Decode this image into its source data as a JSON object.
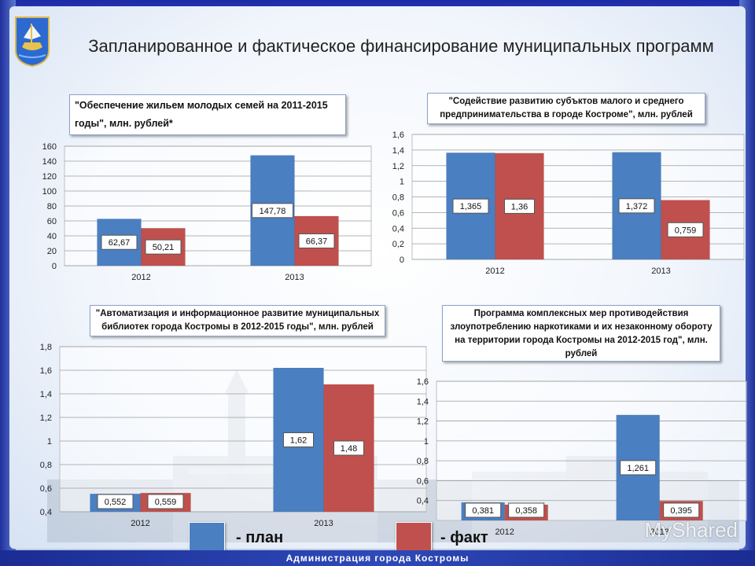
{
  "page": {
    "title": "Запланированное и фактическое финансирование муниципальных программ",
    "footer": "Администрация города Костромы",
    "watermark": "MyShared"
  },
  "legend": {
    "plan_label": "- план",
    "fact_label": "- факт",
    "plan_color": "#4a7fc1",
    "fact_color": "#c0504d"
  },
  "chart_data": [
    {
      "type": "bar",
      "title": "\"Обеспечение жильем молодых семей на 2011-2015 годы\", млн. рублей*",
      "categories": [
        "2012",
        "2013"
      ],
      "series": [
        {
          "name": "план",
          "values": [
            62.67,
            147.78
          ],
          "labels": [
            "62,67",
            "147,78"
          ]
        },
        {
          "name": "факт",
          "values": [
            50.21,
            66.37
          ],
          "labels": [
            "50,21",
            "66,37"
          ]
        }
      ],
      "ylim": [
        0,
        160
      ],
      "yticks": [
        "0",
        "20",
        "40",
        "60",
        "80",
        "100",
        "120",
        "140",
        "160"
      ],
      "ytick_values": [
        0,
        20,
        40,
        60,
        80,
        100,
        120,
        140,
        160
      ]
    },
    {
      "type": "bar",
      "title": "\"Содействие развитию субъктов малого и среднего предпринимательства в городе Костроме\", млн. рублей",
      "categories": [
        "2012",
        "2013"
      ],
      "series": [
        {
          "name": "план",
          "values": [
            1.365,
            1.372
          ],
          "labels": [
            "1,365",
            "1,372"
          ]
        },
        {
          "name": "факт",
          "values": [
            1.36,
            0.759
          ],
          "labels": [
            "1,36",
            "0,759"
          ]
        }
      ],
      "ylim": [
        0,
        1.6
      ],
      "yticks": [
        "0",
        "0,2",
        "0,4",
        "0,6",
        "0,8",
        "1",
        "1,2",
        "1,4",
        "1,6"
      ],
      "ytick_values": [
        0,
        0.2,
        0.4,
        0.6,
        0.8,
        1,
        1.2,
        1.4,
        1.6
      ]
    },
    {
      "type": "bar",
      "title": "\"Автоматизация и информационное развитие муниципальных библиотек города Костромы в 2012-2015 годы\", млн. рублей",
      "categories": [
        "2012",
        "2013"
      ],
      "series": [
        {
          "name": "план",
          "values": [
            0.552,
            1.62
          ],
          "labels": [
            "0,552",
            "1,62"
          ]
        },
        {
          "name": "факт",
          "values": [
            0.559,
            1.48
          ],
          "labels": [
            "0,559",
            "1,48"
          ]
        }
      ],
      "ylim": [
        0.4,
        1.8
      ],
      "yticks": [
        "0,4",
        "0,6",
        "0,8",
        "1",
        "1,2",
        "1,4",
        "1,6",
        "1,8"
      ],
      "ytick_values": [
        0.4,
        0.6,
        0.8,
        1,
        1.2,
        1.4,
        1.6,
        1.8
      ]
    },
    {
      "type": "bar",
      "title": "Программа комплексных мер противодействия злоупотреблению наркотиками и их незаконному обороту на территории города Костромы на 2012-2015 год\", млн. рублей",
      "categories": [
        "2012",
        "2013"
      ],
      "series": [
        {
          "name": "план",
          "values": [
            0.381,
            1.261
          ],
          "labels": [
            "0,381",
            "1,261"
          ]
        },
        {
          "name": "факт",
          "values": [
            0.358,
            0.395
          ],
          "labels": [
            "0,358",
            "0,395"
          ]
        }
      ],
      "ylim": [
        0.2,
        1.6
      ],
      "yticks": [
        "0,4",
        "0,6",
        "0,8",
        "1",
        "1,2",
        "1,4",
        "1,6"
      ],
      "ytick_values": [
        0.4,
        0.6,
        0.8,
        1,
        1.2,
        1.4,
        1.6
      ]
    }
  ]
}
